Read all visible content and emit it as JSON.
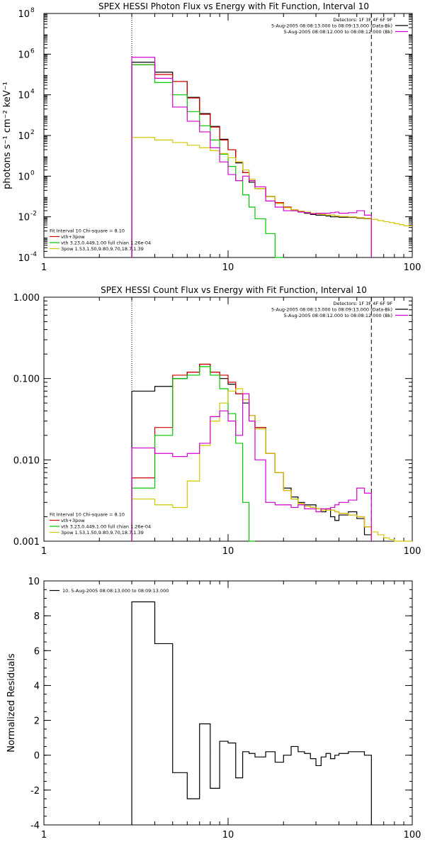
{
  "chart_data": [
    {
      "type": "line",
      "title": "SPEX HESSI Photon Flux vs Energy with Fit Function, Interval 10",
      "xlabel": "",
      "ylabel": "photons s⁻¹ cm⁻² keV⁻¹",
      "xscale": "log",
      "yscale": "log",
      "xlim": [
        1,
        100
      ],
      "ylim": [
        0.0001,
        100000000
      ],
      "x_ticks": [
        {
          "v": 1,
          "label": "1"
        },
        {
          "v": 10,
          "label": "10"
        },
        {
          "v": 100,
          "label": "100"
        }
      ],
      "y_ticks": [
        {
          "v": 0.0001,
          "label": "10",
          "exp": "-4"
        },
        {
          "v": 0.01,
          "label": "10",
          "exp": "-2"
        },
        {
          "v": 1,
          "label": "10",
          "exp": "0"
        },
        {
          "v": 100,
          "label": "10",
          "exp": "2"
        },
        {
          "v": 10000,
          "label": "10",
          "exp": "4"
        },
        {
          "v": 1000000,
          "label": "10",
          "exp": "6"
        },
        {
          "v": 100000000,
          "label": "10",
          "exp": "8"
        }
      ],
      "vlines": [
        {
          "x": 3,
          "style": "dotted"
        },
        {
          "x": 60,
          "style": "dashed"
        }
      ],
      "legend_top_right": [
        {
          "text": "Detectors: 1F 3F 4F 6F 9F",
          "color": null
        },
        {
          "text": "5-Aug-2005 08:08:13.000 to 08:09:13.000 (Data-Bk)",
          "color": "#000000"
        },
        {
          "text": "5-Aug-2005 08:08:12.000 to 08:08:12.000 (Bk)",
          "color": "#d200d2"
        }
      ],
      "legend_bottom_left": [
        {
          "text": "Fit Interval 10    Chi-square = 8.10",
          "color": null
        },
        {
          "text": "vth+3pow",
          "color": "#d20000"
        },
        {
          "text": "vth 3.23,0.449,1.00  full chian 1.26e-04",
          "color": "#00c800"
        },
        {
          "text": "3pow 1.53,1.50,9.80,9.70,18.7,1.39",
          "color": "#d2c800"
        }
      ],
      "edges": [
        3,
        4,
        5,
        6,
        7,
        8,
        9,
        10,
        11,
        12,
        13,
        14,
        16,
        18,
        20,
        22,
        24,
        26,
        28,
        30,
        32,
        34,
        36,
        38,
        40,
        45,
        50,
        55,
        60
      ],
      "series": [
        {
          "name": "5-Aug-2005 08:08:13.000 to 08:09:13.000 (Data-Bk)",
          "color": "#000000",
          "values": [
            400000,
            130000,
            45000,
            7500,
            1200,
            280,
            65,
            20,
            4.5,
            1.5,
            0.5,
            0.25,
            0.1,
            0.05,
            0.03,
            0.02,
            0.018,
            0.015,
            0.013,
            0.012,
            0.012,
            0.011,
            0.01,
            0.01,
            0.0095,
            0.0093,
            0.0085,
            0.008
          ]
        },
        {
          "name": "vth+3pow",
          "color": "#d20000",
          "values": [
            300000,
            100000,
            45000,
            7000,
            1100,
            260,
            60,
            20,
            5,
            1.5,
            0.6,
            0.25,
            0.1,
            0.05,
            0.03,
            0.022,
            0.019,
            0.017,
            0.015,
            0.014,
            0.013,
            0.012,
            0.012,
            0.011,
            0.0105,
            0.0098,
            0.009,
            0.0083
          ]
        },
        {
          "name": "vth 3.23,0.449,1.00  full chian 1.26e-04",
          "color": "#00c800",
          "values": [
            300000,
            40000,
            10000,
            1500,
            300,
            60,
            12,
            3,
            0.6,
            0.12,
            0.03,
            0.008,
            0.0015,
            0.0001,
            null,
            null,
            null,
            null,
            null,
            null,
            null,
            null,
            null,
            null,
            null,
            null,
            null,
            null
          ]
        },
        {
          "name": "3pow 1.53,1.50,9.80,9.70,18.7,1.39",
          "color": "#d2c800",
          "values": [
            80,
            60,
            45,
            33,
            25,
            18,
            13,
            8,
            5,
            2,
            0.7,
            0.25,
            0.1,
            0.045,
            0.028,
            0.022,
            0.019,
            0.017,
            0.015,
            0.014,
            0.013,
            0.012,
            0.012,
            0.011,
            0.0105,
            0.0098,
            0.009,
            0.0083
          ]
        },
        {
          "name": "5-Aug-2005 08:08:12.000 to 08:08:12.000 (Bk)",
          "color": "#d200d2",
          "values": [
            700000,
            65000,
            2500,
            500,
            150,
            25,
            5,
            1.2,
            0.6,
            1.0,
            0.6,
            0.3,
            0.06,
            0.03,
            0.02,
            0.02,
            0.017,
            0.016,
            0.014,
            0.015,
            0.015,
            0.015,
            0.016,
            0.017,
            0.015,
            0.016,
            0.02,
            0.012
          ]
        }
      ],
      "extension": {
        "color": "#d2c800",
        "edges": [
          60,
          65,
          70,
          75,
          80,
          85,
          90,
          100
        ],
        "values": [
          0.0075,
          0.0065,
          0.0058,
          0.0052,
          0.0046,
          0.0041,
          0.0036
        ]
      }
    },
    {
      "type": "line",
      "title": "SPEX HESSI Count Flux vs Energy with Fit Function, Interval 10",
      "xlabel": "",
      "ylabel": "",
      "xscale": "log",
      "yscale": "log",
      "xlim": [
        1,
        100
      ],
      "ylim": [
        0.001,
        1
      ],
      "x_ticks": [
        {
          "v": 1,
          "label": "1"
        },
        {
          "v": 10,
          "label": "10"
        },
        {
          "v": 100,
          "label": "100"
        }
      ],
      "y_ticks": [
        {
          "v": 0.001,
          "label": "0.001"
        },
        {
          "v": 0.01,
          "label": "0.010"
        },
        {
          "v": 0.1,
          "label": "0.100"
        },
        {
          "v": 1,
          "label": "1.000"
        }
      ],
      "vlines": [
        {
          "x": 3,
          "style": "dotted"
        },
        {
          "x": 60,
          "style": "dashed"
        }
      ],
      "legend_top_right": [
        {
          "text": "Detectors: 1F 3F 4F 6F 9F",
          "color": null
        },
        {
          "text": "5-Aug-2005 08:08:13.000 to 08:09:13.000 (Data-Bk)",
          "color": "#000000"
        },
        {
          "text": "5-Aug-2005 08:08:12.000 to 08:08:12.000 (Bk)",
          "color": "#d200d2"
        }
      ],
      "legend_bottom_left": [
        {
          "text": "Fit Interval 10    Chi-square = 8.10",
          "color": null
        },
        {
          "text": "vth+3pow",
          "color": "#d20000"
        },
        {
          "text": "vth 3.23,0.449,1.00  full chian 1.26e-04",
          "color": "#00c800"
        },
        {
          "text": "3pow 1.53,1.50,9.80,9.70,18.7,1.39",
          "color": "#d2c800"
        }
      ],
      "edges": [
        3,
        4,
        5,
        6,
        7,
        8,
        9,
        10,
        11,
        12,
        13,
        14,
        16,
        18,
        20,
        22,
        24,
        26,
        28,
        30,
        32,
        34,
        36,
        38,
        40,
        45,
        50,
        55,
        60
      ],
      "series": [
        {
          "name": "5-Aug-2005 08:08:13.000 to 08:09:13.000 (Data-Bk)",
          "color": "#000000",
          "values": [
            0.07,
            0.08,
            0.1,
            0.12,
            0.15,
            0.12,
            0.1,
            0.085,
            0.065,
            0.05,
            0.035,
            0.025,
            0.012,
            0.007,
            0.0045,
            0.0035,
            0.003,
            0.0028,
            0.0028,
            0.0025,
            0.0023,
            0.0025,
            0.002,
            0.0018,
            0.0021,
            0.0023,
            0.0019,
            0.0012
          ]
        },
        {
          "name": "vth+3pow",
          "color": "#d20000",
          "values": [
            0.006,
            0.025,
            0.11,
            0.12,
            0.15,
            0.12,
            0.11,
            0.09,
            0.065,
            0.055,
            0.035,
            0.025,
            0.012,
            0.007,
            0.0042,
            0.0033,
            0.0029,
            0.0027,
            0.0026,
            0.0025,
            0.0024,
            0.0024,
            0.0024,
            0.0023,
            0.0022,
            0.0021,
            0.002,
            0.0015
          ]
        },
        {
          "name": "vth 3.23,0.449,1.00  full chian 1.26e-04",
          "color": "#00c800",
          "values": [
            0.0045,
            0.02,
            0.1,
            0.11,
            0.14,
            0.11,
            0.075,
            0.037,
            0.016,
            0.003,
            0.001,
            null,
            null,
            null,
            null,
            null,
            null,
            null,
            null,
            null,
            null,
            null,
            null,
            null,
            null,
            null,
            null,
            null
          ]
        },
        {
          "name": "3pow 1.53,1.50,9.80,9.70,18.7,1.39",
          "color": "#d2c800",
          "values": [
            0.0033,
            0.0028,
            0.0026,
            0.0055,
            0.015,
            0.03,
            0.05,
            0.07,
            0.075,
            0.055,
            0.035,
            0.024,
            0.012,
            0.007,
            0.0042,
            0.0033,
            0.0029,
            0.0027,
            0.0026,
            0.0025,
            0.0024,
            0.0024,
            0.0024,
            0.0023,
            0.0022,
            0.0021,
            0.002,
            0.0015
          ]
        },
        {
          "name": "5-Aug-2005 08:08:12.000 to 08:08:12.000 (Bk)",
          "color": "#d200d2",
          "values": [
            0.014,
            0.012,
            0.011,
            0.012,
            0.016,
            0.034,
            0.04,
            0.03,
            0.02,
            0.065,
            0.03,
            0.01,
            0.003,
            0.0028,
            0.0028,
            0.0026,
            0.0028,
            0.0025,
            0.0025,
            0.0023,
            0.0025,
            0.0025,
            0.0026,
            0.0028,
            0.003,
            0.0032,
            0.0045,
            0.0039
          ]
        }
      ],
      "extension": {
        "color": "#d2c800",
        "edges": [
          60,
          65,
          70,
          75,
          80,
          85,
          90,
          100
        ],
        "values": [
          0.0013,
          0.0012,
          0.0011,
          0.00105,
          0.001,
          0.001,
          0.001
        ]
      }
    },
    {
      "type": "line",
      "title": "",
      "xlabel": "",
      "ylabel": "Normalized Residuals",
      "xscale": "log",
      "yscale": "linear",
      "xlim": [
        1,
        100
      ],
      "ylim": [
        -4,
        10
      ],
      "x_ticks": [
        {
          "v": 1,
          "label": "1"
        },
        {
          "v": 10,
          "label": "10"
        },
        {
          "v": 100,
          "label": "100"
        }
      ],
      "y_ticks": [
        {
          "v": -4,
          "label": "-4"
        },
        {
          "v": -2,
          "label": "-2"
        },
        {
          "v": 0,
          "label": "0"
        },
        {
          "v": 2,
          "label": "2"
        },
        {
          "v": 4,
          "label": "4"
        },
        {
          "v": 6,
          "label": "6"
        },
        {
          "v": 8,
          "label": "8"
        },
        {
          "v": 10,
          "label": "10"
        }
      ],
      "vlines": [],
      "legend_top_left": [
        {
          "text": "10.  5-Aug-2005 08:08:13.000 to 08:09:13.000",
          "color": "#000000"
        }
      ],
      "edges": [
        3,
        4,
        5,
        6,
        7,
        8,
        9,
        10,
        11,
        12,
        13,
        14,
        16,
        18,
        20,
        22,
        24,
        26,
        28,
        30,
        32,
        34,
        36,
        38,
        40,
        45,
        50,
        55,
        60
      ],
      "series": [
        {
          "name": "10.  5-Aug-2005 08:08:13.000 to 08:09:13.000",
          "color": "#000000",
          "values": [
            8.8,
            6.4,
            -1.0,
            -2.5,
            1.8,
            -1.9,
            0.8,
            0.7,
            -1.3,
            0.2,
            0.1,
            -0.1,
            0.2,
            -0.4,
            0.0,
            0.5,
            0.2,
            0.1,
            -0.2,
            -0.6,
            -0.1,
            0.1,
            -0.2,
            0.0,
            0.1,
            0.2,
            0.2,
            0.0
          ],
          "drop_to_axis": true
        }
      ]
    }
  ]
}
